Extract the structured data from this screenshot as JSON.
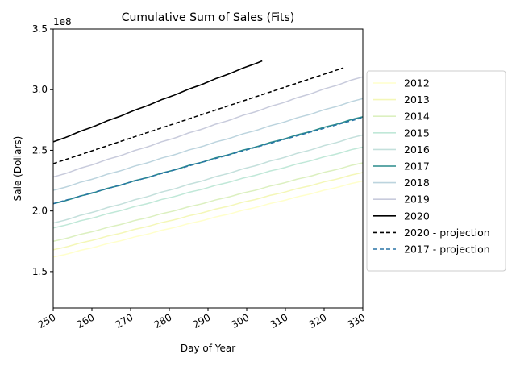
{
  "chart_data": {
    "type": "line",
    "title": "Cumulative Sum of Sales (Fits)",
    "xlabel": "Day of Year",
    "ylabel": "Sale (Dollars)",
    "offset_text": "1e8",
    "xlim": [
      250,
      330
    ],
    "ylim": [
      1.2,
      3.5
    ],
    "x_ticks": [
      250,
      260,
      270,
      280,
      290,
      300,
      310,
      320,
      330
    ],
    "y_ticks": [
      1.5,
      2.0,
      2.5,
      3.0,
      3.5
    ],
    "x_tick_labels": [
      "250",
      "260",
      "270",
      "280",
      "290",
      "300",
      "310",
      "320",
      "330"
    ],
    "y_tick_labels": [
      "1.5",
      "2.0",
      "2.5",
      "3.0",
      "3.5"
    ],
    "legend_position": "right-outside",
    "series": [
      {
        "name": "2012",
        "color": "#ffffcc",
        "style": "solid",
        "x": [
          250,
          330
        ],
        "y": [
          1.62,
          2.25
        ]
      },
      {
        "name": "2013",
        "color": "#f4f7b8",
        "style": "solid",
        "x": [
          250,
          330
        ],
        "y": [
          1.68,
          2.32
        ]
      },
      {
        "name": "2014",
        "color": "#dcf0c0",
        "style": "solid",
        "x": [
          250,
          330
        ],
        "y": [
          1.75,
          2.4
        ]
      },
      {
        "name": "2015",
        "color": "#c0e8d8",
        "style": "solid",
        "x": [
          250,
          330
        ],
        "y": [
          1.86,
          2.53
        ]
      },
      {
        "name": "2016",
        "color": "#c4e0dc",
        "style": "solid",
        "x": [
          250,
          330
        ],
        "y": [
          1.9,
          2.63
        ]
      },
      {
        "name": "2017",
        "color": "#2a8c8c",
        "style": "solid",
        "x": [
          250,
          330
        ],
        "y": [
          2.06,
          2.78
        ]
      },
      {
        "name": "2018",
        "color": "#bcd4de",
        "style": "solid",
        "x": [
          250,
          330
        ],
        "y": [
          2.17,
          2.93
        ]
      },
      {
        "name": "2019",
        "color": "#c8cbdc",
        "style": "solid",
        "x": [
          250,
          330
        ],
        "y": [
          2.28,
          3.11
        ]
      },
      {
        "name": "2020",
        "color": "#000000",
        "style": "solid",
        "x": [
          250,
          304
        ],
        "y": [
          2.57,
          3.24
        ]
      },
      {
        "name": "2020 - projection",
        "color": "#000000",
        "style": "dashed",
        "x": [
          250,
          325
        ],
        "y": [
          2.39,
          3.18
        ]
      },
      {
        "name": "2017 - projection",
        "color": "#2874a6",
        "style": "dashed",
        "x": [
          250,
          330
        ],
        "y": [
          2.06,
          2.77
        ]
      }
    ]
  }
}
